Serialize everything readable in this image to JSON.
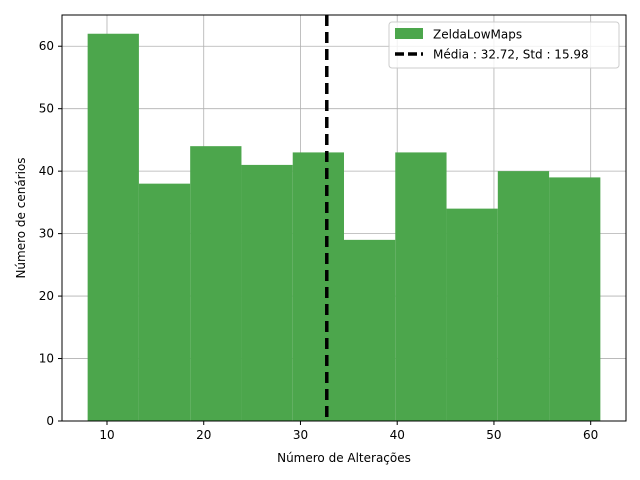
{
  "chart_data": {
    "type": "bar",
    "xlabel": "Número de Alterações",
    "ylabel": "Número de cenários",
    "xlim": [
      5.35,
      63.65
    ],
    "ylim": [
      0,
      65
    ],
    "bin_edges": [
      8,
      13.3,
      18.6,
      23.9,
      29.2,
      34.5,
      39.8,
      45.1,
      50.4,
      55.7,
      61
    ],
    "counts": [
      62,
      38,
      44,
      41,
      43,
      29,
      43,
      34,
      40,
      39
    ],
    "series": [
      {
        "name": "ZeldaLowMaps",
        "color": "#4ca64c"
      }
    ],
    "mean_line": {
      "value": 32.72,
      "label": "Média : 32.72, Std : 15.98",
      "color": "#000000",
      "style": "dashed"
    },
    "x_ticks": [
      10,
      20,
      30,
      40,
      50,
      60
    ],
    "y_ticks": [
      0,
      10,
      20,
      30,
      40,
      50,
      60
    ],
    "x_tick_labels": [
      "10",
      "20",
      "30",
      "40",
      "50",
      "60"
    ],
    "y_tick_labels": [
      "0",
      "10",
      "20",
      "30",
      "40",
      "50",
      "60"
    ],
    "grid": true,
    "legend_position": "top-right"
  }
}
